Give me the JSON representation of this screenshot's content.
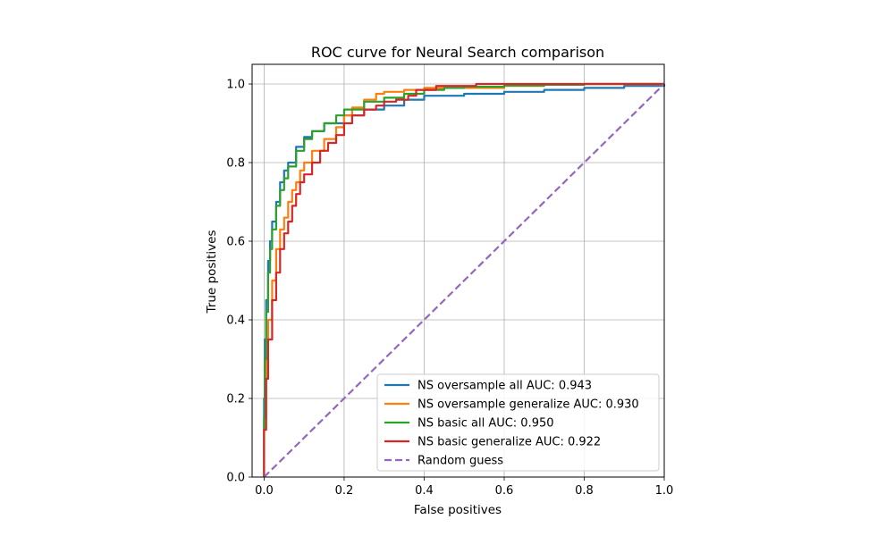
{
  "chart_data": {
    "type": "line",
    "title": "ROC curve for Neural Search comparison",
    "xlabel": "False positives",
    "ylabel": "True positives",
    "xlim": [
      -0.03,
      1.0
    ],
    "ylim": [
      0.0,
      1.05
    ],
    "xticks": [
      0.0,
      0.2,
      0.4,
      0.6,
      0.8,
      1.0
    ],
    "yticks": [
      0.0,
      0.2,
      0.4,
      0.6,
      0.8,
      1.0
    ],
    "xtick_labels": [
      "0.0",
      "0.2",
      "0.4",
      "0.6",
      "0.8",
      "1.0"
    ],
    "ytick_labels": [
      "0.0",
      "0.2",
      "0.4",
      "0.6",
      "0.8",
      "1.0"
    ],
    "grid": true,
    "legend_position": "lower-right",
    "series": [
      {
        "name": "NS oversample all AUC: 0.943",
        "color": "#1f77b4",
        "dash": "solid",
        "x": [
          0.0,
          0.0,
          0.002,
          0.005,
          0.01,
          0.015,
          0.02,
          0.03,
          0.04,
          0.05,
          0.06,
          0.08,
          0.1,
          0.12,
          0.15,
          0.2,
          0.25,
          0.3,
          0.35,
          0.4,
          0.5,
          0.6,
          0.7,
          0.8,
          0.9,
          1.0
        ],
        "y": [
          0.0,
          0.2,
          0.35,
          0.45,
          0.55,
          0.6,
          0.65,
          0.7,
          0.75,
          0.78,
          0.8,
          0.84,
          0.865,
          0.88,
          0.9,
          0.92,
          0.935,
          0.945,
          0.96,
          0.97,
          0.975,
          0.98,
          0.985,
          0.99,
          0.995,
          1.0
        ]
      },
      {
        "name": "NS oversample generalize AUC: 0.930",
        "color": "#ff7f0e",
        "dash": "solid",
        "x": [
          0.0,
          0.0,
          0.005,
          0.01,
          0.02,
          0.03,
          0.04,
          0.05,
          0.06,
          0.07,
          0.08,
          0.09,
          0.1,
          0.12,
          0.15,
          0.18,
          0.2,
          0.22,
          0.25,
          0.28,
          0.3,
          0.35,
          0.4,
          0.5,
          0.6,
          0.7,
          0.8,
          1.0
        ],
        "y": [
          0.0,
          0.15,
          0.3,
          0.4,
          0.5,
          0.58,
          0.63,
          0.66,
          0.7,
          0.73,
          0.75,
          0.78,
          0.8,
          0.83,
          0.86,
          0.89,
          0.92,
          0.94,
          0.96,
          0.975,
          0.98,
          0.985,
          0.99,
          0.99,
          0.995,
          0.998,
          1.0,
          1.0
        ]
      },
      {
        "name": "NS basic all AUC: 0.950",
        "color": "#2ca02c",
        "dash": "solid",
        "x": [
          0.0,
          0.0,
          0.002,
          0.005,
          0.01,
          0.015,
          0.02,
          0.03,
          0.04,
          0.05,
          0.06,
          0.08,
          0.1,
          0.12,
          0.15,
          0.18,
          0.2,
          0.25,
          0.3,
          0.35,
          0.4,
          0.45,
          0.5,
          0.6,
          0.7,
          0.8,
          1.0
        ],
        "y": [
          0.0,
          0.15,
          0.3,
          0.42,
          0.52,
          0.58,
          0.63,
          0.69,
          0.73,
          0.76,
          0.79,
          0.83,
          0.86,
          0.88,
          0.9,
          0.92,
          0.935,
          0.955,
          0.965,
          0.975,
          0.985,
          0.99,
          0.993,
          0.996,
          0.998,
          1.0,
          1.0
        ]
      },
      {
        "name": "NS basic generalize AUC: 0.922",
        "color": "#d62728",
        "dash": "solid",
        "x": [
          0.0,
          0.0,
          0.005,
          0.01,
          0.02,
          0.03,
          0.04,
          0.05,
          0.06,
          0.07,
          0.08,
          0.09,
          0.1,
          0.12,
          0.14,
          0.16,
          0.18,
          0.2,
          0.22,
          0.25,
          0.28,
          0.3,
          0.33,
          0.36,
          0.38,
          0.42,
          0.43,
          0.5,
          0.53,
          0.6,
          0.7,
          0.8,
          0.9,
          1.0
        ],
        "y": [
          0.0,
          0.12,
          0.25,
          0.35,
          0.45,
          0.52,
          0.58,
          0.62,
          0.65,
          0.69,
          0.72,
          0.75,
          0.77,
          0.8,
          0.83,
          0.85,
          0.87,
          0.9,
          0.92,
          0.935,
          0.945,
          0.955,
          0.96,
          0.97,
          0.985,
          0.985,
          0.995,
          0.995,
          1.0,
          1.0,
          1.0,
          1.0,
          1.0,
          1.0
        ]
      },
      {
        "name": "Random guess",
        "color": "#9467bd",
        "dash": "dashed",
        "x": [
          0.0,
          1.0
        ],
        "y": [
          0.0,
          1.0
        ]
      }
    ]
  }
}
